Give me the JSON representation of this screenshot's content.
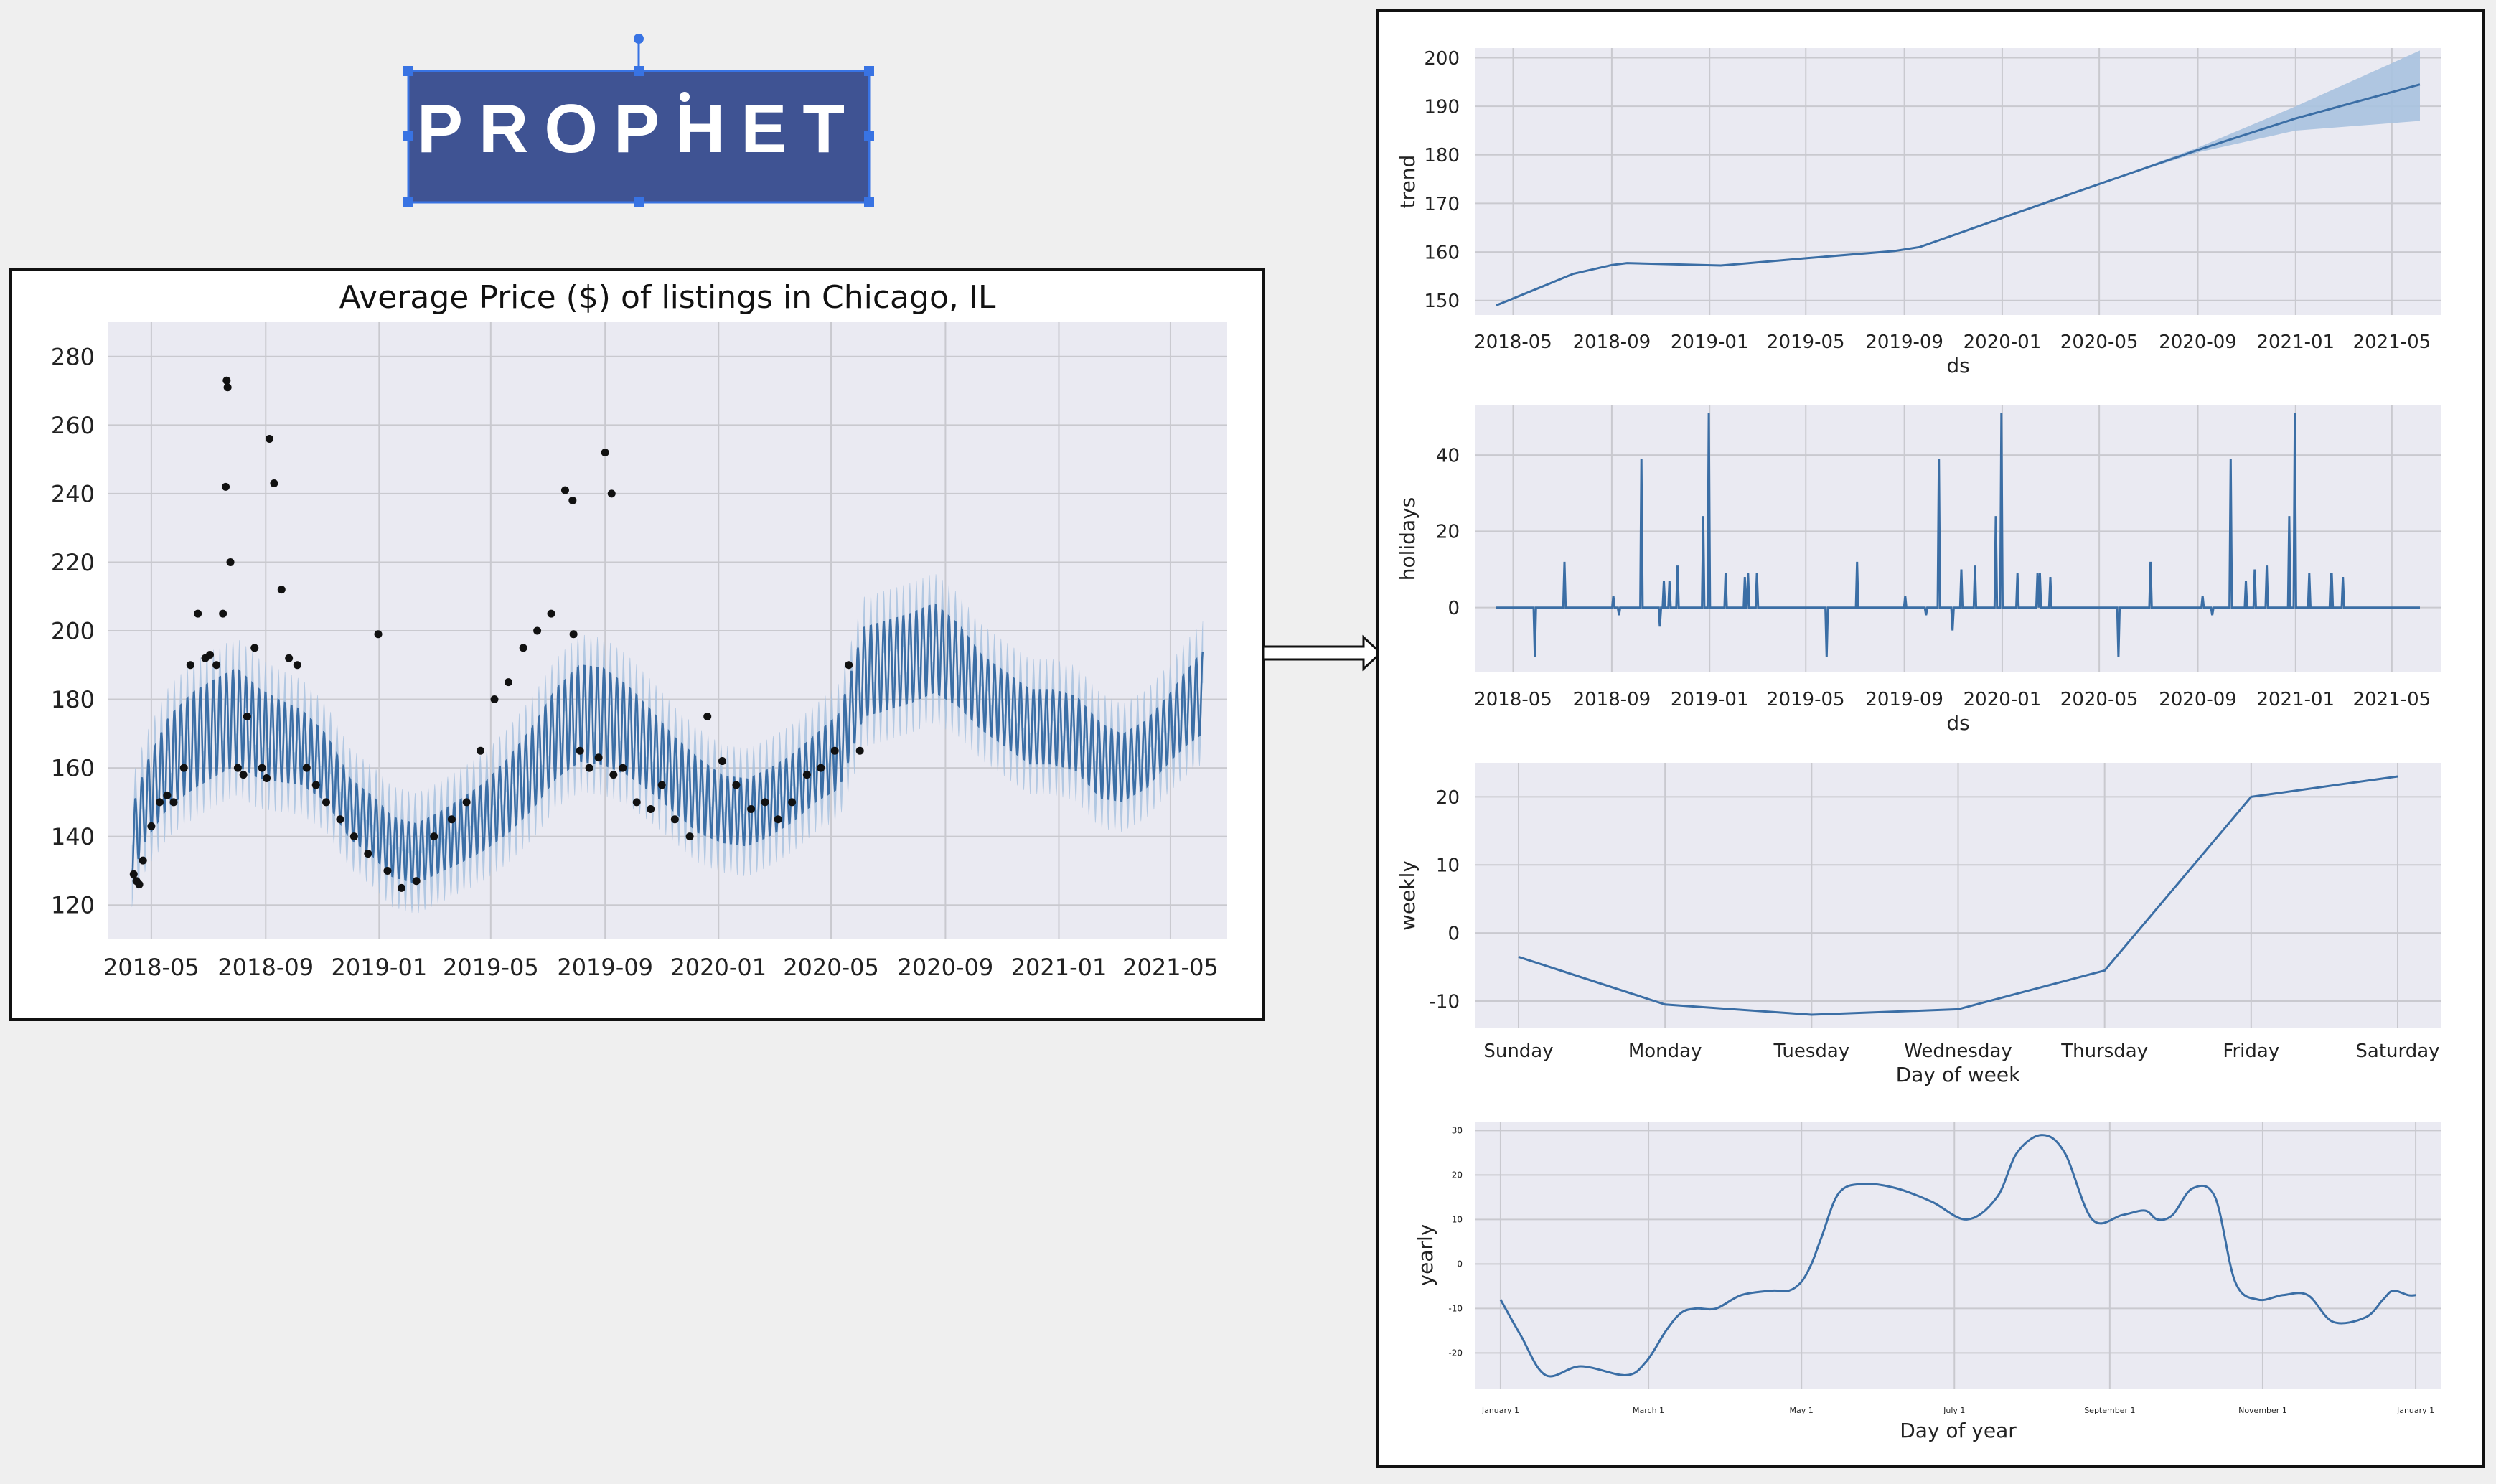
{
  "logo": {
    "text": "PROPHET",
    "bg": "#3f5393",
    "fg": "#ffffff",
    "handle": "#3873e3"
  },
  "colors": {
    "plot_bg": "#eaeaf2",
    "grid": "#c9c9cf",
    "line": "#3b6ea5",
    "band": "#a8c2df",
    "point": "#111111"
  },
  "chart_data": [
    {
      "id": "forecast",
      "type": "line",
      "title": "Average Price ($) of listings in Chicago, IL",
      "xlabel": "",
      "ylabel": "",
      "x_ticks": [
        "2018-05",
        "2018-09",
        "2019-01",
        "2019-05",
        "2019-09",
        "2020-01",
        "2020-05",
        "2020-09",
        "2021-01",
        "2021-05"
      ],
      "y_ticks": [
        120,
        140,
        160,
        180,
        200,
        220,
        240,
        260,
        280
      ],
      "xlim": [
        "2018-03-15",
        "2021-07-01"
      ],
      "ylim": [
        110,
        290
      ],
      "series": [
        {
          "role": "forecast",
          "x": [
            "2018-04-10",
            "2018-04-25",
            "2018-05-20",
            "2018-06-15",
            "2018-07-10",
            "2018-08-01",
            "2018-08-25",
            "2018-09-15",
            "2018-10-10",
            "2018-11-05",
            "2018-12-01",
            "2018-12-25",
            "2019-01-15",
            "2019-02-10",
            "2019-03-05",
            "2019-04-01",
            "2019-04-25",
            "2019-05-20",
            "2019-06-15",
            "2019-07-10",
            "2019-08-05",
            "2019-08-30",
            "2019-09-25",
            "2019-10-20",
            "2019-11-15",
            "2019-12-10",
            "2020-01-05",
            "2020-02-01",
            "2020-02-25",
            "2020-03-20",
            "2020-04-15",
            "2020-05-10",
            "2020-06-05",
            "2020-07-01",
            "2020-07-25",
            "2020-08-20",
            "2020-09-15",
            "2020-10-10",
            "2020-11-05",
            "2020-12-01",
            "2020-12-25",
            "2021-01-20",
            "2021-02-15",
            "2021-03-10",
            "2021-04-05",
            "2021-05-01",
            "2021-05-20",
            "2021-06-05"
          ],
          "y": [
            138,
            150,
            162,
            168,
            172,
            175,
            170,
            168,
            166,
            160,
            148,
            143,
            137,
            135,
            138,
            142,
            146,
            152,
            160,
            170,
            176,
            175,
            171,
            165,
            158,
            152,
            148,
            147,
            150,
            154,
            160,
            165,
            188,
            190,
            192,
            195,
            190,
            182,
            177,
            172,
            172,
            170,
            162,
            160,
            164,
            172,
            178,
            182
          ],
          "amplitude": [
            18,
            20,
            24,
            26,
            26,
            26,
            24,
            22,
            20,
            18,
            16,
            16,
            16,
            16,
            16,
            17,
            18,
            20,
            22,
            24,
            26,
            26,
            24,
            22,
            20,
            20,
            18,
            18,
            18,
            18,
            18,
            20,
            24,
            24,
            24,
            24,
            22,
            20,
            20,
            20,
            20,
            20,
            20,
            18,
            18,
            18,
            20,
            22
          ]
        },
        {
          "role": "observed",
          "x": [
            "2018-04-12",
            "2018-04-15",
            "2018-04-18",
            "2018-04-22",
            "2018-05-01",
            "2018-05-10",
            "2018-05-18",
            "2018-05-25",
            "2018-06-05",
            "2018-06-12",
            "2018-06-20",
            "2018-06-28",
            "2018-07-03",
            "2018-07-10",
            "2018-07-17",
            "2018-07-20",
            "2018-07-21",
            "2018-07-22",
            "2018-07-25",
            "2018-08-02",
            "2018-08-08",
            "2018-08-12",
            "2018-08-20",
            "2018-08-28",
            "2018-09-02",
            "2018-09-05",
            "2018-09-10",
            "2018-09-18",
            "2018-09-26",
            "2018-10-05",
            "2018-10-15",
            "2018-10-25",
            "2018-11-05",
            "2018-11-20",
            "2018-12-05",
            "2018-12-20",
            "2018-12-31",
            "2019-01-10",
            "2019-01-25",
            "2019-02-10",
            "2019-03-01",
            "2019-03-20",
            "2019-04-05",
            "2019-04-20",
            "2019-05-05",
            "2019-05-20",
            "2019-06-05",
            "2019-06-20",
            "2019-07-05",
            "2019-07-20",
            "2019-07-28",
            "2019-07-29",
            "2019-08-05",
            "2019-08-15",
            "2019-08-25",
            "2019-09-01",
            "2019-09-08",
            "2019-09-10",
            "2019-09-20",
            "2019-10-05",
            "2019-10-20",
            "2019-11-01",
            "2019-11-15",
            "2019-12-01",
            "2019-12-20",
            "2020-01-05",
            "2020-01-20",
            "2020-02-05",
            "2020-02-20",
            "2020-03-05",
            "2020-03-20",
            "2020-04-05",
            "2020-04-20",
            "2020-05-05",
            "2020-05-20",
            "2020-06-01"
          ],
          "y": [
            129,
            127,
            126,
            133,
            143,
            150,
            152,
            150,
            160,
            190,
            205,
            192,
            193,
            190,
            205,
            242,
            273,
            271,
            220,
            160,
            158,
            175,
            195,
            160,
            157,
            256,
            243,
            212,
            192,
            190,
            160,
            155,
            150,
            145,
            140,
            135,
            199,
            130,
            125,
            127,
            140,
            145,
            150,
            165,
            180,
            185,
            195,
            200,
            205,
            241,
            238,
            199,
            165,
            160,
            163,
            252,
            240,
            158,
            160,
            150,
            148,
            155,
            145,
            140,
            175,
            162,
            155,
            148,
            150,
            145,
            150,
            158,
            160,
            165,
            190,
            165
          ]
        }
      ]
    },
    {
      "id": "trend",
      "type": "line",
      "xlabel": "ds",
      "ylabel": "trend",
      "x_ticks": [
        "2018-05",
        "2018-09",
        "2019-01",
        "2019-05",
        "2019-09",
        "2020-01",
        "2020-05",
        "2020-09",
        "2021-01",
        "2021-05"
      ],
      "y_ticks": [
        150,
        160,
        170,
        180,
        190,
        200
      ],
      "xlim": [
        "2018-03-15",
        "2021-07-01"
      ],
      "ylim": [
        147,
        202
      ],
      "series": [
        {
          "name": "",
          "x": [
            "2018-04-10",
            "2018-06-01",
            "2018-07-15",
            "2018-09-01",
            "2018-09-20",
            "2019-01-15",
            "2019-05-01",
            "2019-08-20",
            "2019-09-20",
            "2020-01-01",
            "2020-05-01",
            "2020-09-01",
            "2021-01-01",
            "2021-06-05"
          ],
          "y": [
            149,
            152.5,
            155.5,
            157.3,
            157.7,
            157.2,
            158.7,
            160.2,
            161.0,
            167.0,
            174.0,
            181.0,
            187.5,
            194.5
          ],
          "lower": [
            149,
            152.5,
            155.5,
            157.3,
            157.7,
            157.2,
            158.7,
            160.2,
            161.0,
            167.0,
            174.0,
            180.5,
            185.0,
            187.0
          ],
          "upper": [
            149,
            152.5,
            155.5,
            157.3,
            157.7,
            157.2,
            158.7,
            160.2,
            161.0,
            167.0,
            174.0,
            181.5,
            190.0,
            201.5
          ]
        }
      ]
    },
    {
      "id": "holidays",
      "type": "line",
      "xlabel": "ds",
      "ylabel": "holidays",
      "x_ticks": [
        "2018-05",
        "2018-09",
        "2019-01",
        "2019-05",
        "2019-09",
        "2020-01",
        "2020-05",
        "2020-09",
        "2021-01",
        "2021-05"
      ],
      "y_ticks": [
        0,
        20,
        40
      ],
      "xlim": [
        "2018-03-15",
        "2021-07-01"
      ],
      "ylim": [
        -17,
        53
      ],
      "series": [
        {
          "name": "",
          "x": [
            "2018-05-28",
            "2018-07-04",
            "2018-09-03",
            "2018-09-10",
            "2018-10-08",
            "2018-10-31",
            "2018-11-05",
            "2018-11-12",
            "2018-11-22",
            "2018-12-24",
            "2018-12-31",
            "2019-01-21",
            "2019-02-14",
            "2019-02-18",
            "2019-03-01",
            "2019-05-27",
            "2019-07-04",
            "2019-09-02",
            "2019-09-28",
            "2019-10-14",
            "2019-10-31",
            "2019-11-11",
            "2019-11-28",
            "2019-12-24",
            "2019-12-31",
            "2020-01-20",
            "2020-02-14",
            "2020-02-17",
            "2020-03-01",
            "2020-05-25",
            "2020-07-04",
            "2020-09-07",
            "2020-09-19",
            "2020-10-12",
            "2020-10-31",
            "2020-11-11",
            "2020-11-26",
            "2020-12-24",
            "2020-12-31",
            "2021-01-18",
            "2021-02-14",
            "2021-02-15",
            "2021-03-01"
          ],
          "y": [
            -13,
            12,
            3,
            -2,
            39,
            -5,
            7,
            7,
            11,
            24,
            51,
            9,
            8,
            9,
            9,
            -13,
            12,
            3,
            -2,
            39,
            -6,
            10,
            11,
            24,
            51,
            9,
            9,
            9,
            8,
            -13,
            12,
            3,
            -2,
            39,
            7,
            10,
            11,
            24,
            51,
            9,
            9,
            9,
            8
          ]
        }
      ]
    },
    {
      "id": "weekly",
      "type": "line",
      "xlabel": "Day of week",
      "ylabel": "weekly",
      "categories": [
        "Sunday",
        "Monday",
        "Tuesday",
        "Wednesday",
        "Thursday",
        "Friday",
        "Saturday"
      ],
      "y_ticks": [
        -10,
        0,
        10,
        20
      ],
      "ylim": [
        -14,
        25
      ],
      "series": [
        {
          "name": "",
          "values": [
            -3.5,
            -10.5,
            -12,
            -11.2,
            -5.5,
            20,
            23
          ]
        }
      ]
    },
    {
      "id": "yearly",
      "type": "line",
      "xlabel": "Day of year",
      "ylabel": "yearly",
      "x_ticks": [
        "January 1",
        "March 1",
        "May 1",
        "July 1",
        "September 1",
        "November 1",
        "January 1"
      ],
      "y_ticks": [
        -20,
        -10,
        0,
        10,
        20,
        30
      ],
      "xlim": [
        -10,
        375
      ],
      "ylim": [
        -28,
        32
      ],
      "series": [
        {
          "name": "",
          "x": [
            0,
            8,
            18,
            32,
            50,
            58,
            66,
            72,
            78,
            86,
            96,
            108,
            115,
            120,
            124,
            128,
            135,
            145,
            158,
            172,
            186,
            198,
            206,
            216,
            225,
            236,
            248,
            257,
            262,
            268,
            276,
            285,
            293,
            302,
            312,
            322,
            332,
            345,
            352,
            356,
            362,
            365
          ],
          "y": [
            -8,
            -16,
            -25,
            -23,
            -25,
            -22,
            -15,
            -11,
            -10,
            -10,
            -7,
            -6,
            -6,
            -4,
            0,
            6,
            16,
            18,
            17,
            14,
            10,
            15,
            25,
            29,
            25,
            10,
            11,
            12,
            10,
            11,
            17,
            15,
            -4,
            -8,
            -7,
            -7,
            -13,
            -12,
            -8,
            -6,
            -7,
            -7
          ]
        }
      ]
    }
  ]
}
